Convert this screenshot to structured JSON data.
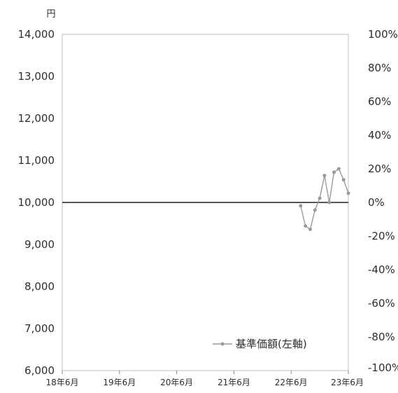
{
  "chart_data": {
    "type": "line",
    "unit_label": "円",
    "x_categories": [
      "18年6月",
      "19年6月",
      "20年6月",
      "21年6月",
      "22年6月",
      "23年6月"
    ],
    "left_axis": {
      "min": 6000,
      "max": 14000,
      "ticks": [
        "6,000",
        "7,000",
        "8,000",
        "9,000",
        "10,000",
        "11,000",
        "12,000",
        "13,000",
        "14,000"
      ]
    },
    "right_axis": {
      "min": -100,
      "max": 100,
      "ticks": [
        "-100%",
        "-80%",
        "-60%",
        "-40%",
        "-20%",
        "0%",
        "20%",
        "40%",
        "60%",
        "80%",
        "100%"
      ]
    },
    "reference_line": 10000,
    "series": [
      {
        "name": "基準価額(左軸)",
        "axis": "left",
        "color": "#9a9a9a",
        "points": [
          {
            "date": "2022-08",
            "value": 9920
          },
          {
            "date": "2022-09",
            "value": 9440
          },
          {
            "date": "2022-10",
            "value": 9360
          },
          {
            "date": "2022-11",
            "value": 9820
          },
          {
            "date": "2022-12",
            "value": 10100
          },
          {
            "date": "2023-01",
            "value": 10640
          },
          {
            "date": "2023-02",
            "value": 10000
          },
          {
            "date": "2023-03",
            "value": 10720
          },
          {
            "date": "2023-04",
            "value": 10800
          },
          {
            "date": "2023-05",
            "value": 10540
          },
          {
            "date": "2023-06",
            "value": 10220
          }
        ]
      }
    ],
    "legend_position": "bottom-right",
    "grid": false
  }
}
